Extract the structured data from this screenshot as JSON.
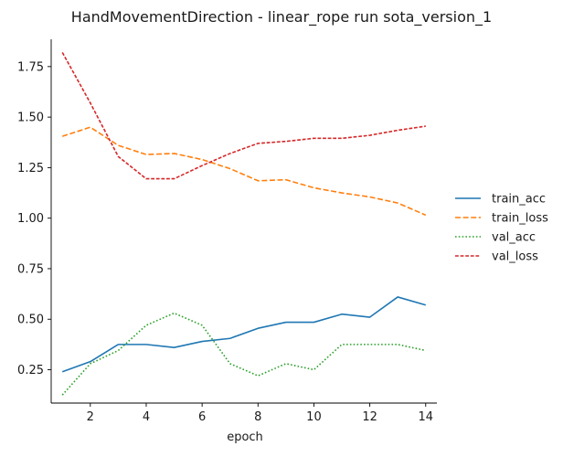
{
  "chart_data": {
    "type": "line",
    "title": "HandMovementDirection - linear_rope run sota_version_1",
    "xlabel": "epoch",
    "ylabel": "",
    "x": [
      1,
      2,
      3,
      4,
      5,
      6,
      7,
      8,
      9,
      10,
      11,
      12,
      13,
      14
    ],
    "xlim": [
      0.6,
      14.4
    ],
    "ylim": [
      0.085,
      1.885
    ],
    "xticks": [
      2,
      4,
      6,
      8,
      10,
      12,
      14
    ],
    "yticks": [
      0.25,
      0.5,
      0.75,
      1.0,
      1.25,
      1.5,
      1.75
    ],
    "ytick_labels": [
      "0.25",
      "0.50",
      "0.75",
      "1.00",
      "1.25",
      "1.50",
      "1.75"
    ],
    "grid": false,
    "legend_position": "right",
    "series": [
      {
        "name": "train_acc",
        "color": "#1f77b4",
        "dash": "solid",
        "values": [
          0.24,
          0.29,
          0.375,
          0.375,
          0.36,
          0.39,
          0.405,
          0.455,
          0.485,
          0.485,
          0.525,
          0.51,
          0.61,
          0.57
        ]
      },
      {
        "name": "train_loss",
        "color": "#ff7f0e",
        "dash": "dashed",
        "values": [
          1.405,
          1.45,
          1.36,
          1.315,
          1.32,
          1.29,
          1.245,
          1.185,
          1.19,
          1.15,
          1.125,
          1.105,
          1.075,
          1.015
        ]
      },
      {
        "name": "val_acc",
        "color": "#2ca02c",
        "dash": "dotted",
        "values": [
          0.125,
          0.28,
          0.345,
          0.47,
          0.53,
          0.47,
          0.28,
          0.22,
          0.28,
          0.25,
          0.375,
          0.375,
          0.375,
          0.345
        ]
      },
      {
        "name": "val_loss",
        "color": "#d62728",
        "dash": "dashdot",
        "values": [
          1.82,
          1.57,
          1.305,
          1.195,
          1.195,
          1.26,
          1.32,
          1.37,
          1.38,
          1.395,
          1.395,
          1.41,
          1.435,
          1.455
        ]
      }
    ]
  }
}
